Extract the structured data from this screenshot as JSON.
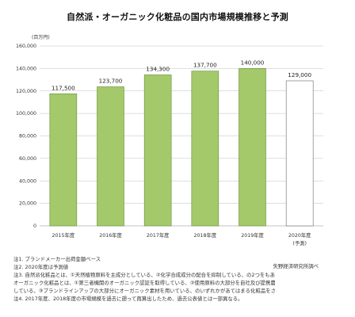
{
  "chart_data": {
    "type": "bar",
    "title": "自然派・オーガニック化粧品の国内市場規模推移と予測",
    "unit_label": "(百万円)",
    "categories": [
      "2015年度",
      "2016年度",
      "2017年度",
      "2018年度",
      "2019年度",
      "2020年度\n(予測)"
    ],
    "values": [
      117500,
      123700,
      134300,
      137700,
      140000,
      129000
    ],
    "value_labels": [
      "117,500",
      "123,700",
      "134,300",
      "137,700",
      "140,000",
      "129,000"
    ],
    "forecast_index": 5,
    "ylim": [
      0,
      160000
    ],
    "y_ticks": [
      0,
      20000,
      40000,
      60000,
      80000,
      100000,
      120000,
      140000,
      160000
    ],
    "y_tick_labels": [
      "0",
      "20,000",
      "40,000",
      "60,000",
      "80,000",
      "100,000",
      "120,000",
      "140,000",
      "160,000"
    ],
    "grid": true,
    "colors": {
      "bar": "#a3c96a",
      "bar_stroke": "#6b8e3a",
      "forecast_fill": "#ffffff",
      "forecast_stroke": "#666666",
      "grid": "#bfbfbf"
    }
  },
  "footer": {
    "source": "矢野経済研究所調べ",
    "notes": [
      "注1. ブランドメーカー出荷金額ベース",
      "注2. 2020年度は予測値",
      "注3. 自然派化粧品とは、①天然植物原料を主成分としている、②化学合成成分の配合を抑制している、の2つをもあてはまる化粧品をさす。",
      "オーガニック化粧品とは、①第三者機関のオーガニック認証を取得している、②使用原料の大部分を自社及び提携農園のオーガニック素材を使用",
      "している、③ブランドラインアップの大部分にオーガニック素材を用いている、のいずれかがあてはまる化粧品をさす。",
      "注4. 2017年度、2018年度の市場規模を過去に遡って再算出したため、過去公表値とは一部異なる。"
    ]
  }
}
